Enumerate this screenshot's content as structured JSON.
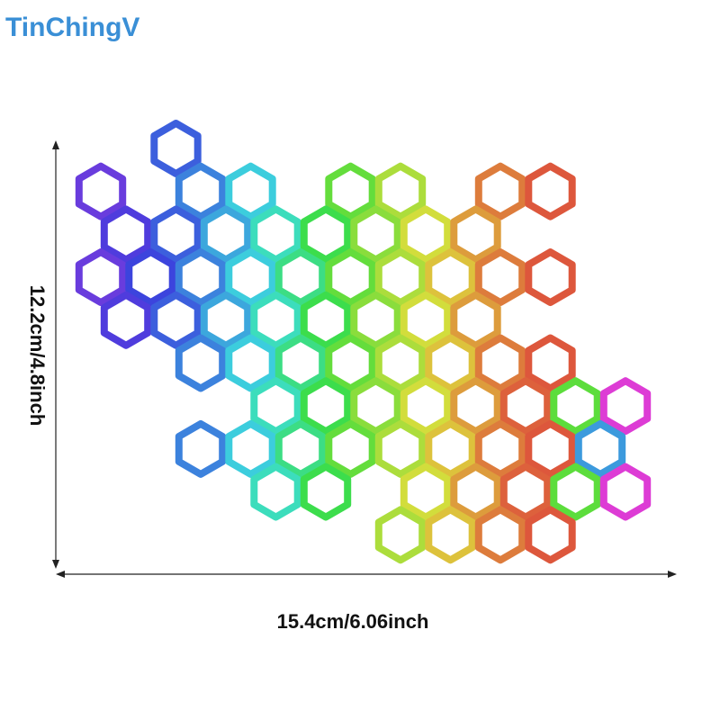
{
  "brand": "TinChingV",
  "width_label": "15.4cm/6.06inch",
  "height_label": "12.2cm/4.8inch"
}
